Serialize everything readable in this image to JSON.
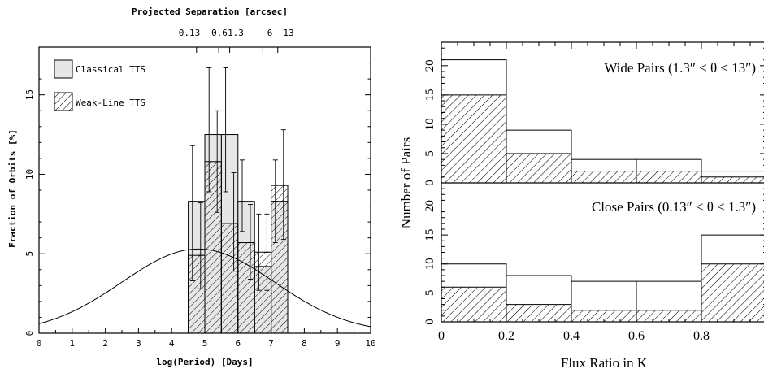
{
  "chart_data": [
    {
      "type": "bar",
      "title": "",
      "xlabel": "log(Period) [Days]",
      "ylabel": "Fraction of Orbits [%]",
      "top_axis_label": "Projected Separation [arcsec]",
      "top_ticks": [
        {
          "label": "0.13",
          "at": 4.75
        },
        {
          "label": "0.6",
          "at": 5.42
        },
        {
          "label": "1.3",
          "at": 5.75
        },
        {
          "label": "6",
          "at": 6.75
        },
        {
          "label": "13",
          "at": 7.2
        }
      ],
      "xlim": [
        0,
        10
      ],
      "ylim": [
        0,
        18
      ],
      "xticks": [
        "0",
        "1",
        "2",
        "3",
        "4",
        "5",
        "6",
        "7",
        "8",
        "9",
        "10"
      ],
      "yticks": [
        "0",
        "5",
        "10",
        "15"
      ],
      "legend_position": "top-left",
      "bin_edges": [
        4.5,
        5.0,
        5.5,
        6.0,
        6.5,
        7.0,
        7.5
      ],
      "series": [
        {
          "name": "Classical TTS",
          "fill": "light-gray",
          "values": [
            8.3,
            12.5,
            12.5,
            8.3,
            4.2,
            8.3
          ],
          "err_low": [
            3.3,
            8.9,
            8.9,
            6.4,
            2.7,
            5.7
          ],
          "err_high": [
            11.8,
            16.7,
            16.7,
            10.9,
            7.5,
            10.9
          ]
        },
        {
          "name": "Weak-Line TTS",
          "fill": "diagonal-hatch",
          "values": [
            4.9,
            10.8,
            6.9,
            5.7,
            5.1,
            9.3
          ],
          "err_low": [
            2.8,
            7.6,
            3.9,
            3.4,
            2.7,
            5.9
          ],
          "err_high": [
            8.2,
            14.0,
            10.1,
            8.1,
            7.5,
            12.8
          ]
        }
      ],
      "curve": {
        "type": "gaussian",
        "mean": 4.8,
        "sigma": 2.3,
        "peak": 5.3
      }
    },
    {
      "type": "bar",
      "xlabel": "Flux Ratio in K",
      "ylabel": "Number of Pairs",
      "xlim": [
        0,
        1.0
      ],
      "xticks": [
        "0",
        "0.2",
        "0.4",
        "0.6",
        "0.8"
      ],
      "bin_edges": [
        0,
        0.2,
        0.4,
        0.6,
        0.8,
        1.0
      ],
      "panels": [
        {
          "label": "Wide Pairs (1.3″ < θ < 13″)",
          "ylim": [
            0,
            24
          ],
          "yticks": [
            "0",
            "5",
            "10",
            "15",
            "20"
          ],
          "total": [
            21,
            9,
            4,
            4,
            2
          ],
          "hatched": [
            15,
            5,
            2,
            2,
            1
          ]
        },
        {
          "label": "Close Pairs (0.13″ < θ < 1.3″)",
          "ylim": [
            0,
            24
          ],
          "yticks": [
            "0",
            "5",
            "10",
            "15",
            "20"
          ],
          "total": [
            10,
            8,
            7,
            7,
            15
          ],
          "hatched": [
            6,
            3,
            2,
            2,
            10
          ]
        }
      ]
    }
  ]
}
